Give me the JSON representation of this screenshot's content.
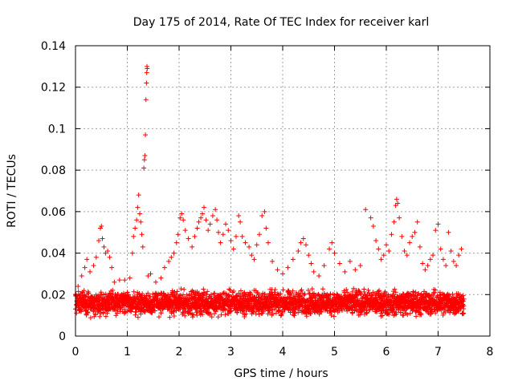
{
  "chart_data": {
    "type": "scatter",
    "title": "Day 175 of 2014, Rate Of TEC Index for receiver karl",
    "xlabel": "GPS time / hours",
    "ylabel": "ROTI / TECUs",
    "xlim": [
      0,
      8
    ],
    "ylim": [
      0,
      0.14
    ],
    "x_ticks": [
      "0",
      "1",
      "2",
      "3",
      "4",
      "5",
      "6",
      "7",
      "8"
    ],
    "y_ticks": [
      "0",
      "0.02",
      "0.04",
      "0.06",
      "0.08",
      "0.1",
      "0.12",
      "0.14"
    ],
    "grid": true,
    "marker": "+",
    "color": "#ff0000",
    "series": [
      {
        "name": "ROTI",
        "baseline": {
          "x_range": [
            0,
            7.5
          ],
          "median": 0.015,
          "typical_range": [
            0.008,
            0.024
          ],
          "sample_interval_hours": 0.0025
        },
        "points": [
          [
            0.05,
            0.024
          ],
          [
            0.12,
            0.029
          ],
          [
            0.18,
            0.033
          ],
          [
            0.22,
            0.037
          ],
          [
            0.28,
            0.031
          ],
          [
            0.35,
            0.034
          ],
          [
            0.4,
            0.038
          ],
          [
            0.45,
            0.046
          ],
          [
            0.48,
            0.052
          ],
          [
            0.5,
            0.053
          ],
          [
            0.52,
            0.047
          ],
          [
            0.55,
            0.043
          ],
          [
            0.58,
            0.04
          ],
          [
            0.62,
            0.041
          ],
          [
            0.66,
            0.038
          ],
          [
            0.7,
            0.033
          ],
          [
            0.75,
            0.026
          ],
          [
            0.85,
            0.027
          ],
          [
            0.95,
            0.027
          ],
          [
            1.05,
            0.028
          ],
          [
            1.1,
            0.04
          ],
          [
            1.12,
            0.048
          ],
          [
            1.15,
            0.052
          ],
          [
            1.18,
            0.056
          ],
          [
            1.2,
            0.062
          ],
          [
            1.22,
            0.068
          ],
          [
            1.24,
            0.059
          ],
          [
            1.26,
            0.055
          ],
          [
            1.28,
            0.049
          ],
          [
            1.3,
            0.043
          ],
          [
            1.32,
            0.081
          ],
          [
            1.33,
            0.085
          ],
          [
            1.34,
            0.087
          ],
          [
            1.35,
            0.097
          ],
          [
            1.36,
            0.114
          ],
          [
            1.37,
            0.122
          ],
          [
            1.375,
            0.127
          ],
          [
            1.38,
            0.13
          ],
          [
            1.385,
            0.129
          ],
          [
            1.4,
            0.029
          ],
          [
            1.45,
            0.03
          ],
          [
            1.55,
            0.026
          ],
          [
            1.65,
            0.028
          ],
          [
            1.72,
            0.033
          ],
          [
            1.8,
            0.036
          ],
          [
            1.85,
            0.038
          ],
          [
            1.9,
            0.04
          ],
          [
            1.95,
            0.045
          ],
          [
            1.98,
            0.049
          ],
          [
            2.02,
            0.057
          ],
          [
            2.05,
            0.059
          ],
          [
            2.08,
            0.056
          ],
          [
            2.12,
            0.051
          ],
          [
            2.18,
            0.047
          ],
          [
            2.25,
            0.043
          ],
          [
            2.3,
            0.048
          ],
          [
            2.35,
            0.052
          ],
          [
            2.38,
            0.055
          ],
          [
            2.42,
            0.057
          ],
          [
            2.45,
            0.059
          ],
          [
            2.48,
            0.062
          ],
          [
            2.52,
            0.056
          ],
          [
            2.56,
            0.051
          ],
          [
            2.6,
            0.054
          ],
          [
            2.65,
            0.058
          ],
          [
            2.7,
            0.061
          ],
          [
            2.73,
            0.056
          ],
          [
            2.76,
            0.05
          ],
          [
            2.8,
            0.045
          ],
          [
            2.85,
            0.049
          ],
          [
            2.9,
            0.054
          ],
          [
            2.95,
            0.051
          ],
          [
            3.0,
            0.046
          ],
          [
            3.05,
            0.042
          ],
          [
            3.1,
            0.048
          ],
          [
            3.15,
            0.058
          ],
          [
            3.18,
            0.055
          ],
          [
            3.22,
            0.048
          ],
          [
            3.28,
            0.045
          ],
          [
            3.35,
            0.043
          ],
          [
            3.4,
            0.039
          ],
          [
            3.45,
            0.037
          ],
          [
            3.5,
            0.044
          ],
          [
            3.55,
            0.049
          ],
          [
            3.6,
            0.058
          ],
          [
            3.65,
            0.06
          ],
          [
            3.68,
            0.052
          ],
          [
            3.72,
            0.045
          ],
          [
            3.8,
            0.036
          ],
          [
            3.9,
            0.032
          ],
          [
            4.0,
            0.03
          ],
          [
            4.1,
            0.033
          ],
          [
            4.2,
            0.037
          ],
          [
            4.3,
            0.041
          ],
          [
            4.35,
            0.045
          ],
          [
            4.4,
            0.047
          ],
          [
            4.45,
            0.044
          ],
          [
            4.5,
            0.039
          ],
          [
            4.55,
            0.035
          ],
          [
            4.6,
            0.031
          ],
          [
            4.7,
            0.029
          ],
          [
            4.8,
            0.034
          ],
          [
            4.9,
            0.042
          ],
          [
            4.95,
            0.045
          ],
          [
            5.0,
            0.04
          ],
          [
            5.1,
            0.035
          ],
          [
            5.2,
            0.031
          ],
          [
            5.3,
            0.036
          ],
          [
            5.4,
            0.032
          ],
          [
            5.5,
            0.034
          ],
          [
            5.6,
            0.061
          ],
          [
            5.7,
            0.057
          ],
          [
            5.75,
            0.053
          ],
          [
            5.8,
            0.046
          ],
          [
            5.85,
            0.042
          ],
          [
            5.9,
            0.037
          ],
          [
            5.95,
            0.039
          ],
          [
            6.0,
            0.044
          ],
          [
            6.05,
            0.041
          ],
          [
            6.1,
            0.049
          ],
          [
            6.15,
            0.055
          ],
          [
            6.18,
            0.063
          ],
          [
            6.2,
            0.066
          ],
          [
            6.22,
            0.064
          ],
          [
            6.25,
            0.057
          ],
          [
            6.3,
            0.048
          ],
          [
            6.35,
            0.041
          ],
          [
            6.4,
            0.039
          ],
          [
            6.45,
            0.045
          ],
          [
            6.5,
            0.048
          ],
          [
            6.55,
            0.05
          ],
          [
            6.6,
            0.055
          ],
          [
            6.65,
            0.043
          ],
          [
            6.7,
            0.035
          ],
          [
            6.75,
            0.032
          ],
          [
            6.8,
            0.034
          ],
          [
            6.85,
            0.037
          ],
          [
            6.9,
            0.039
          ],
          [
            6.95,
            0.051
          ],
          [
            7.0,
            0.054
          ],
          [
            7.05,
            0.042
          ],
          [
            7.1,
            0.037
          ],
          [
            7.15,
            0.034
          ],
          [
            7.2,
            0.05
          ],
          [
            7.25,
            0.041
          ],
          [
            7.3,
            0.036
          ],
          [
            7.35,
            0.034
          ],
          [
            7.4,
            0.039
          ],
          [
            7.45,
            0.042
          ]
        ]
      }
    ]
  }
}
